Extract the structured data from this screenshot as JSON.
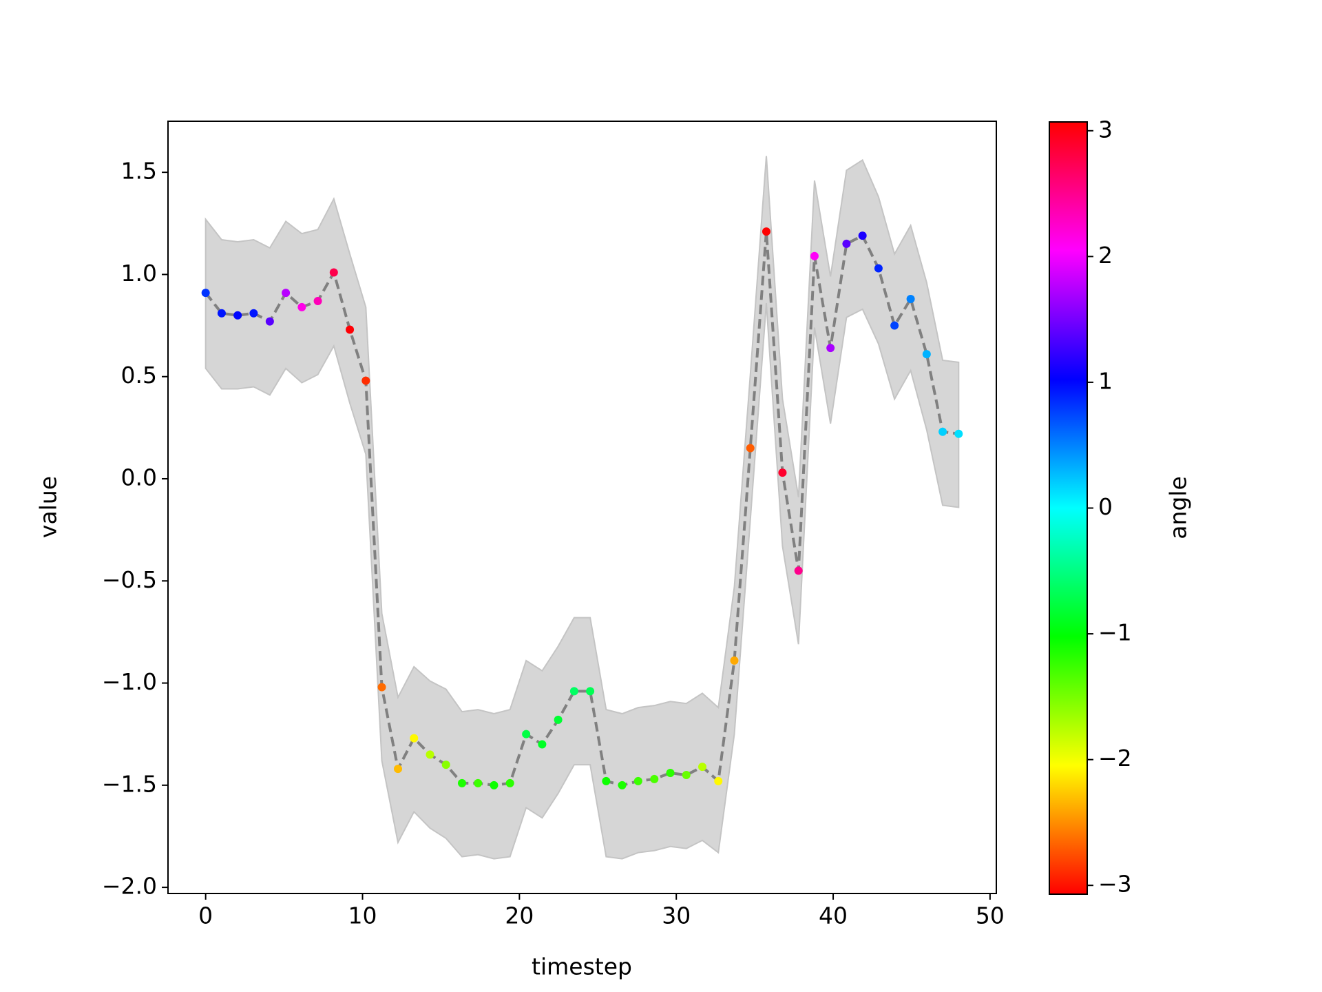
{
  "chart_data": {
    "type": "line",
    "xlabel": "timestep",
    "ylabel": "value",
    "x": [
      0,
      1.02,
      2.04,
      3.06,
      4.09,
      5.11,
      6.13,
      7.15,
      8.17,
      9.19,
      10.21,
      11.23,
      12.26,
      13.28,
      14.3,
      15.32,
      16.34,
      17.36,
      18.38,
      19.4,
      20.43,
      21.45,
      22.47,
      23.49,
      24.51,
      25.53,
      26.55,
      27.57,
      28.6,
      29.62,
      30.64,
      31.66,
      32.68,
      33.7,
      34.72,
      35.74,
      36.77,
      37.79,
      38.81,
      39.83,
      40.85,
      41.87,
      42.89,
      43.91,
      44.94,
      45.96,
      46.98,
      48
    ],
    "values": [
      0.91,
      0.81,
      0.8,
      0.81,
      0.77,
      0.91,
      0.84,
      0.87,
      1.01,
      0.73,
      0.48,
      -1.02,
      -1.42,
      -1.27,
      -1.35,
      -1.4,
      -1.49,
      -1.49,
      -1.5,
      -1.49,
      -1.25,
      -1.3,
      -1.18,
      -1.04,
      -1.04,
      -1.48,
      -1.5,
      -1.48,
      -1.47,
      -1.44,
      -1.45,
      -1.41,
      -1.48,
      -0.89,
      0.15,
      1.21,
      0.03,
      -0.45,
      1.09,
      0.64,
      1.15,
      1.19,
      1.03,
      0.75,
      0.88,
      0.61,
      0.23,
      0.22
    ],
    "band_upper": [
      1.27,
      1.17,
      1.16,
      1.17,
      1.13,
      1.26,
      1.2,
      1.22,
      1.37,
      1.1,
      0.84,
      -0.66,
      -1.07,
      -0.92,
      -0.99,
      -1.03,
      -1.14,
      -1.13,
      -1.15,
      -1.13,
      -0.89,
      -0.94,
      -0.82,
      -0.68,
      -0.68,
      -1.13,
      -1.15,
      -1.12,
      -1.11,
      -1.09,
      -1.1,
      -1.05,
      -1.12,
      -0.53,
      0.51,
      1.58,
      0.39,
      -0.09,
      1.46,
      0.99,
      1.51,
      1.56,
      1.38,
      1.1,
      1.24,
      0.96,
      0.58,
      0.57
    ],
    "band_lower": [
      0.54,
      0.44,
      0.44,
      0.45,
      0.41,
      0.54,
      0.47,
      0.51,
      0.65,
      0.37,
      0.12,
      -1.38,
      -1.78,
      -1.63,
      -1.71,
      -1.76,
      -1.85,
      -1.84,
      -1.86,
      -1.85,
      -1.61,
      -1.66,
      -1.54,
      -1.4,
      -1.4,
      -1.85,
      -1.86,
      -1.83,
      -1.82,
      -1.8,
      -1.81,
      -1.77,
      -1.83,
      -1.25,
      -0.2,
      0.86,
      -0.33,
      -0.81,
      0.74,
      0.27,
      0.79,
      0.83,
      0.66,
      0.39,
      0.53,
      0.24,
      -0.13,
      -0.14
    ],
    "angle": [
      0.82,
      0.94,
      1.0,
      0.94,
      1.38,
      1.76,
      2.14,
      2.33,
      2.77,
      3.05,
      -2.89,
      -2.64,
      -2.32,
      -2.07,
      -1.76,
      -1.57,
      -1.13,
      -1.26,
      -1.07,
      -1.19,
      -0.75,
      -0.88,
      -0.82,
      -0.63,
      -0.69,
      -1.07,
      -1.13,
      -1.26,
      -1.32,
      -1.19,
      -1.44,
      -1.76,
      -2.07,
      -2.39,
      -2.7,
      3.12,
      2.89,
      2.51,
      2.07,
      1.7,
      1.38,
      1.13,
      0.88,
      0.75,
      0.5,
      0.31,
      0.19,
      0.13
    ],
    "line_color": "#808080",
    "band_color": "#d6d6d6",
    "colormap": "hsv",
    "xlim": [
      -2.4,
      50.4
    ],
    "xticks": [
      0,
      10,
      20,
      30,
      40,
      50
    ],
    "ylim": [
      -2.03,
      1.75
    ],
    "yticks": [
      {
        "value": -2.0,
        "label": "−2.0"
      },
      {
        "value": -1.5,
        "label": "−1.5"
      },
      {
        "value": -1.0,
        "label": "−1.0"
      },
      {
        "value": -0.5,
        "label": "−0.5"
      },
      {
        "value": 0.0,
        "label": "0.0"
      },
      {
        "value": 0.5,
        "label": "0.5"
      },
      {
        "value": 1.0,
        "label": "1.0"
      },
      {
        "value": 1.5,
        "label": "1.5"
      }
    ],
    "colorbar_label": "angle",
    "clim": [
      -3.07,
      3.07
    ],
    "colorbar_ticks": [
      {
        "value": -3,
        "label": "−3"
      },
      {
        "value": -2,
        "label": "−2"
      },
      {
        "value": -1,
        "label": "−1"
      },
      0,
      1,
      2,
      3
    ]
  }
}
